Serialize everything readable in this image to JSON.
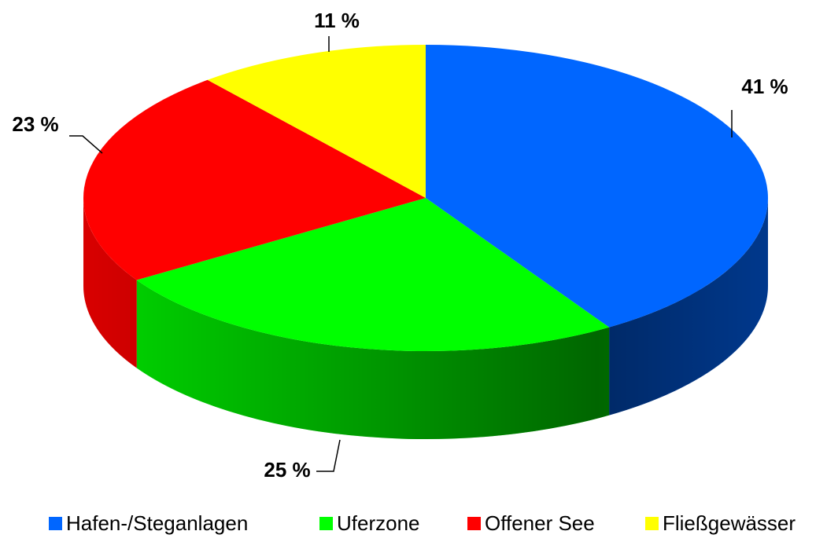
{
  "chart_data": {
    "type": "pie3d",
    "categories": [
      "Hafen-/Steganlagen",
      "Uferzone",
      "Offener See",
      "Fließgewässer"
    ],
    "values": [
      41,
      25,
      23,
      11
    ],
    "value_labels": [
      "41 %",
      "25 %",
      "23 %",
      "11 %"
    ],
    "colors": [
      "#0066ff",
      "#00ff00",
      "#ff0000",
      "#ffff00"
    ],
    "legend": "bottom"
  }
}
